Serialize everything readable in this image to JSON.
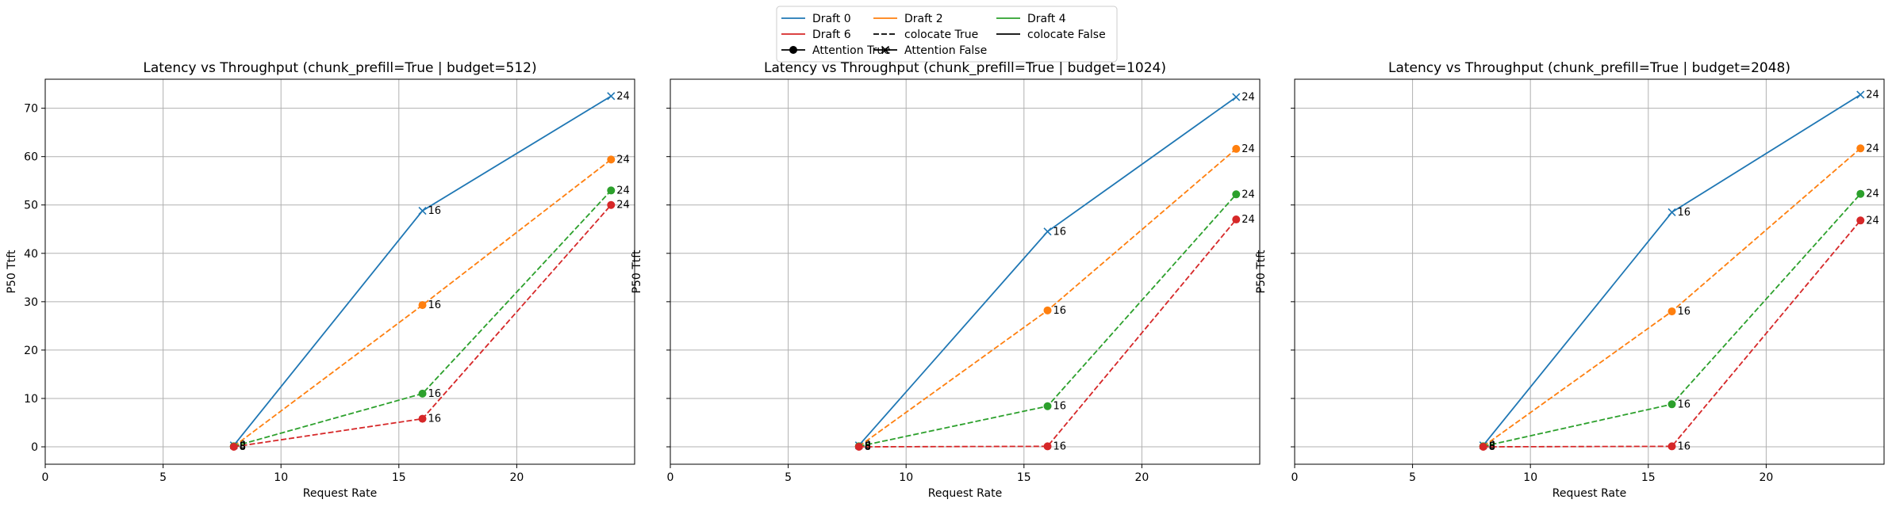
{
  "legend": {
    "entries": [
      {
        "label": "Draft 0",
        "color": "#1f77b4",
        "style": "solid",
        "marker": "none"
      },
      {
        "label": "Draft 6",
        "color": "#d62728",
        "style": "solid",
        "marker": "none"
      },
      {
        "label": "Attention True",
        "color": "#000000",
        "style": "solid",
        "marker": "circle"
      },
      {
        "label": "Draft 2",
        "color": "#ff7f0e",
        "style": "solid",
        "marker": "none"
      },
      {
        "label": "colocate True",
        "color": "#000000",
        "style": "dashed",
        "marker": "none"
      },
      {
        "label": "Attention False",
        "color": "#000000",
        "style": "solid",
        "marker": "x"
      },
      {
        "label": "Draft 4",
        "color": "#2ca02c",
        "style": "solid",
        "marker": "none"
      },
      {
        "label": "colocate False",
        "color": "#000000",
        "style": "solid",
        "marker": "none"
      }
    ],
    "placement": "top-center"
  },
  "chart_data": [
    {
      "type": "line",
      "title": "Latency vs Throughput (chunk_prefill=True | budget=512)",
      "xlabel": "Request Rate",
      "ylabel": "P50 Ttft",
      "xlim": [
        0,
        25
      ],
      "ylim": [
        -3.6,
        76
      ],
      "xticks": [
        0,
        5,
        10,
        15,
        20
      ],
      "yticks": [
        0,
        10,
        20,
        30,
        40,
        50,
        60,
        70
      ],
      "grid": true,
      "series": [
        {
          "name": "Draft 0",
          "color": "#1f77b4",
          "dashed": false,
          "marker": "x",
          "x": [
            8,
            16,
            24
          ],
          "y": [
            0.3,
            48.8,
            72.5
          ],
          "labels": [
            "8",
            "16",
            "24"
          ]
        },
        {
          "name": "Draft 2",
          "color": "#ff7f0e",
          "dashed": true,
          "marker": "o",
          "x": [
            8,
            16,
            24
          ],
          "y": [
            0.1,
            29.3,
            59.4
          ],
          "labels": [
            "8",
            "16",
            "24"
          ]
        },
        {
          "name": "Draft 4",
          "color": "#2ca02c",
          "dashed": true,
          "marker": "o",
          "x": [
            8,
            16,
            24
          ],
          "y": [
            0.1,
            11.0,
            53.0
          ],
          "labels": [
            "8",
            "16",
            "24"
          ]
        },
        {
          "name": "Draft 6",
          "color": "#d62728",
          "dashed": true,
          "marker": "o",
          "x": [
            8,
            16,
            24
          ],
          "y": [
            0.0,
            5.8,
            50.0
          ],
          "labels": [
            "8",
            "16",
            "24"
          ]
        }
      ]
    },
    {
      "type": "line",
      "title": "Latency vs Throughput (chunk_prefill=True | budget=1024)",
      "xlabel": "Request Rate",
      "ylabel": "P50 Ttft",
      "xlim": [
        0,
        25
      ],
      "ylim": [
        -3.6,
        76
      ],
      "xticks": [
        0,
        5,
        10,
        15,
        20
      ],
      "yticks": [
        0,
        10,
        20,
        30,
        40,
        50,
        60,
        70
      ],
      "grid": true,
      "series": [
        {
          "name": "Draft 0",
          "color": "#1f77b4",
          "dashed": false,
          "marker": "x",
          "x": [
            8,
            16,
            24
          ],
          "y": [
            0.3,
            44.5,
            72.3
          ],
          "labels": [
            "8",
            "16",
            "24"
          ]
        },
        {
          "name": "Draft 2",
          "color": "#ff7f0e",
          "dashed": true,
          "marker": "o",
          "x": [
            8,
            16,
            24
          ],
          "y": [
            0.1,
            28.2,
            61.6
          ],
          "labels": [
            "8",
            "16",
            "24"
          ]
        },
        {
          "name": "Draft 4",
          "color": "#2ca02c",
          "dashed": true,
          "marker": "o",
          "x": [
            8,
            16,
            24
          ],
          "y": [
            0.1,
            8.4,
            52.2
          ],
          "labels": [
            "8",
            "16",
            "24"
          ]
        },
        {
          "name": "Draft 6",
          "color": "#d62728",
          "dashed": true,
          "marker": "o",
          "x": [
            8,
            16,
            24
          ],
          "y": [
            0.0,
            0.1,
            47.0
          ],
          "labels": [
            "8",
            "16",
            "24"
          ]
        }
      ]
    },
    {
      "type": "line",
      "title": "Latency vs Throughput (chunk_prefill=True | budget=2048)",
      "xlabel": "Request Rate",
      "ylabel": "P50 Ttft",
      "xlim": [
        0,
        25
      ],
      "ylim": [
        -3.6,
        76
      ],
      "xticks": [
        0,
        5,
        10,
        15,
        20
      ],
      "yticks": [
        0,
        10,
        20,
        30,
        40,
        50,
        60,
        70
      ],
      "grid": true,
      "series": [
        {
          "name": "Draft 0",
          "color": "#1f77b4",
          "dashed": false,
          "marker": "x",
          "x": [
            8,
            16,
            24
          ],
          "y": [
            0.3,
            48.5,
            72.8
          ],
          "labels": [
            "8",
            "16",
            "24"
          ]
        },
        {
          "name": "Draft 2",
          "color": "#ff7f0e",
          "dashed": true,
          "marker": "o",
          "x": [
            8,
            16,
            24
          ],
          "y": [
            0.1,
            28.0,
            61.7
          ],
          "labels": [
            "8",
            "16",
            "24"
          ]
        },
        {
          "name": "Draft 4",
          "color": "#2ca02c",
          "dashed": true,
          "marker": "o",
          "x": [
            8,
            16,
            24
          ],
          "y": [
            0.1,
            8.8,
            52.3
          ],
          "labels": [
            "8",
            "16",
            "24"
          ]
        },
        {
          "name": "Draft 6",
          "color": "#d62728",
          "dashed": true,
          "marker": "o",
          "x": [
            8,
            16,
            24
          ],
          "y": [
            0.0,
            0.1,
            46.8
          ],
          "labels": [
            "8",
            "16",
            "24"
          ]
        }
      ]
    }
  ]
}
